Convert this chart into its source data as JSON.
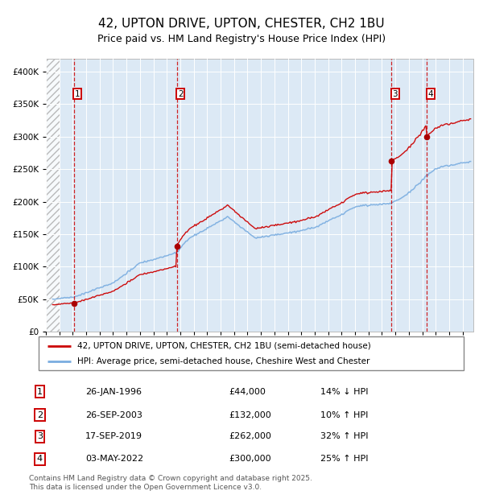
{
  "title": "42, UPTON DRIVE, UPTON, CHESTER, CH2 1BU",
  "subtitle": "Price paid vs. HM Land Registry's House Price Index (HPI)",
  "legend_line1": "42, UPTON DRIVE, UPTON, CHESTER, CH2 1BU (semi-detached house)",
  "legend_line2": "HPI: Average price, semi-detached house, Cheshire West and Chester",
  "footnote": "Contains HM Land Registry data © Crown copyright and database right 2025.\nThis data is licensed under the Open Government Licence v3.0.",
  "transactions": [
    {
      "num": 1,
      "date_x": 1996.07,
      "price": 44000
    },
    {
      "num": 2,
      "date_x": 2003.74,
      "price": 132000
    },
    {
      "num": 3,
      "date_x": 2019.71,
      "price": 262000
    },
    {
      "num": 4,
      "date_x": 2022.34,
      "price": 300000
    }
  ],
  "table_rows": [
    {
      "num": 1,
      "date_str": "26-JAN-1996",
      "price_str": "£44,000",
      "pct_str": "14% ↓ HPI"
    },
    {
      "num": 2,
      "date_str": "26-SEP-2003",
      "price_str": "£132,000",
      "pct_str": "10% ↑ HPI"
    },
    {
      "num": 3,
      "date_str": "17-SEP-2019",
      "price_str": "£262,000",
      "pct_str": "32% ↑ HPI"
    },
    {
      "num": 4,
      "date_str": "03-MAY-2022",
      "price_str": "£300,000",
      "pct_str": "25% ↑ HPI"
    }
  ],
  "ylim": [
    0,
    420000
  ],
  "yticks": [
    0,
    50000,
    100000,
    150000,
    200000,
    250000,
    300000,
    350000,
    400000
  ],
  "xlim_left": 1994.0,
  "xlim_right": 2025.8,
  "hatch_end": 1995.0,
  "bg_color": "#dce9f5",
  "line_color_red": "#cc0000",
  "line_color_blue": "#7aade0",
  "dashed_line_color": "#cc0000",
  "marker_color": "#aa0000",
  "grid_color": "#ffffff",
  "title_fontsize": 11,
  "subtitle_fontsize": 9,
  "tick_label_fontsize": 7.5
}
